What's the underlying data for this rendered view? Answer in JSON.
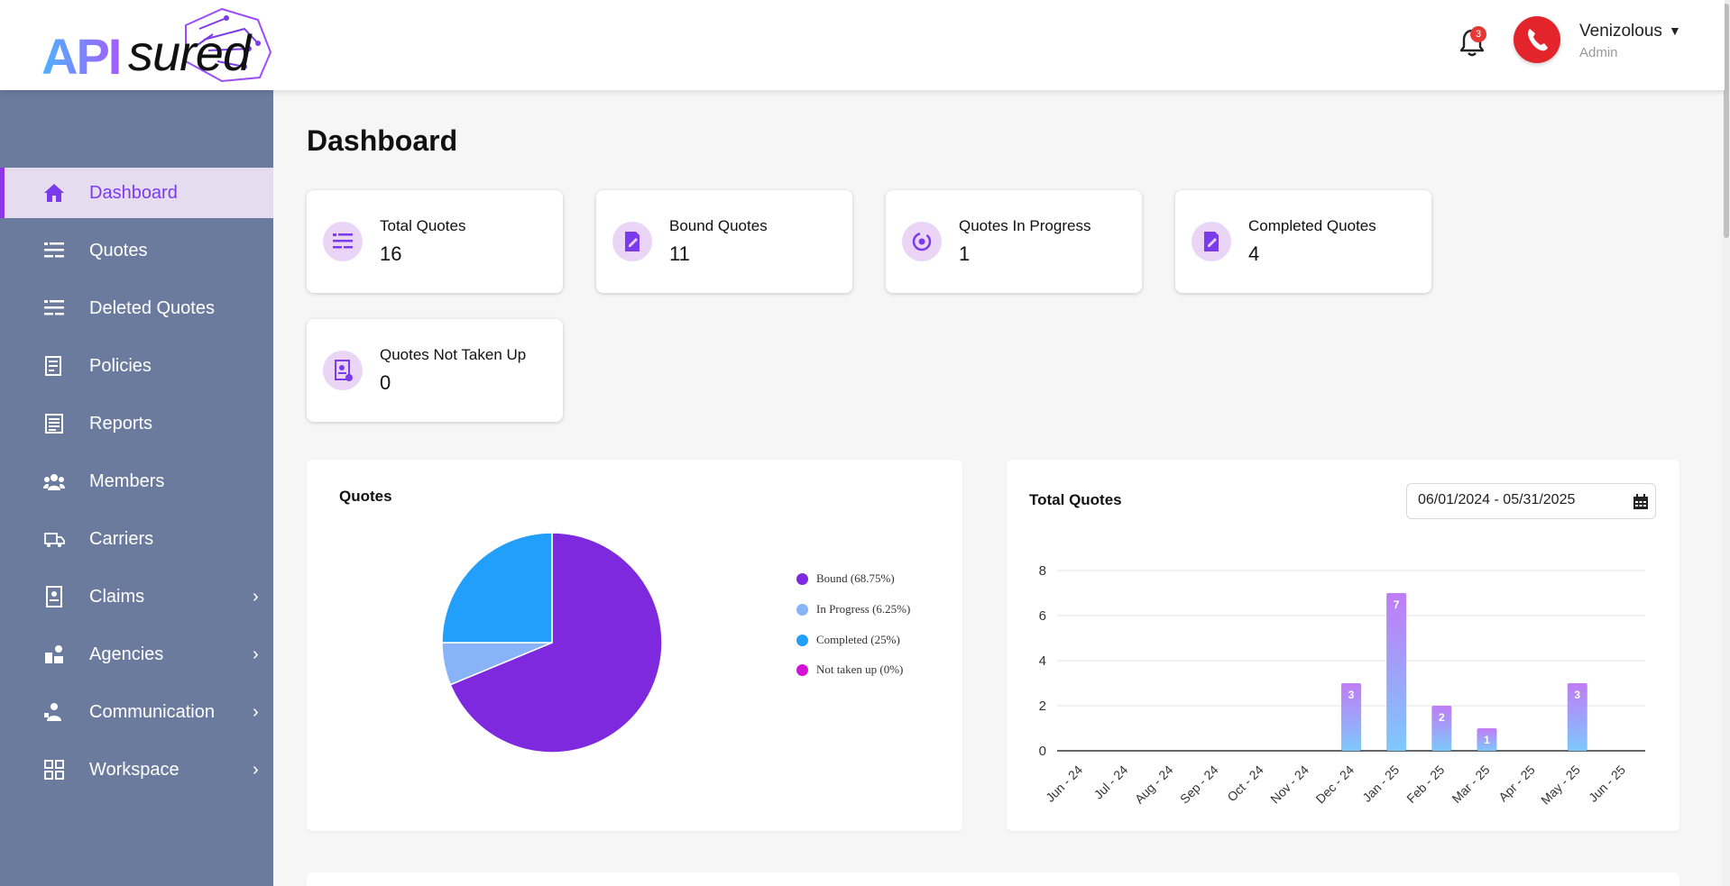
{
  "header": {
    "logo_text_a": "API",
    "logo_text_b": "sured",
    "notification_count": "3",
    "user_name": "Venizolous",
    "user_role": "Admin"
  },
  "sidebar": {
    "items": [
      {
        "label": "Dashboard",
        "icon": "home-icon",
        "active": true
      },
      {
        "label": "Quotes",
        "icon": "quotes-list-icon"
      },
      {
        "label": "Deleted Quotes",
        "icon": "deleted-quotes-icon"
      },
      {
        "label": "Policies",
        "icon": "policies-icon"
      },
      {
        "label": "Reports",
        "icon": "reports-icon"
      },
      {
        "label": "Members",
        "icon": "members-icon"
      },
      {
        "label": "Carriers",
        "icon": "carriers-icon"
      },
      {
        "label": "Claims",
        "icon": "claims-icon",
        "expandable": true
      },
      {
        "label": "Agencies",
        "icon": "agencies-icon",
        "expandable": true
      },
      {
        "label": "Communication",
        "icon": "communication-icon",
        "expandable": true
      },
      {
        "label": "Workspace",
        "icon": "workspace-icon",
        "expandable": true
      }
    ]
  },
  "main": {
    "title": "Dashboard",
    "cards": [
      {
        "title": "Total Quotes",
        "value": "16",
        "icon": "list-icon"
      },
      {
        "title": "Bound Quotes",
        "value": "11",
        "icon": "edit-document-icon"
      },
      {
        "title": "Quotes In Progress",
        "value": "1",
        "icon": "progress-cycle-icon"
      },
      {
        "title": "Completed Quotes",
        "value": "4",
        "icon": "completed-document-icon"
      },
      {
        "title": "Quotes Not Taken Up",
        "value": "0",
        "icon": "rejected-document-icon"
      }
    ]
  },
  "colors": {
    "accent": "#7c3aed",
    "sidebar": "#6b7b9e",
    "bound": "#7e29de",
    "in_progress": "#88b3f7",
    "completed": "#219ffb",
    "not_taken_up": "#d411d9"
  },
  "date_range": "06/01/2024 - 05/31/2025",
  "chart_data": [
    {
      "type": "pie",
      "title": "Quotes",
      "slices": [
        {
          "label": "Bound (68.75%)",
          "value": 68.75,
          "color": "#7e29de"
        },
        {
          "label": "In Progress (6.25%)",
          "value": 6.25,
          "color": "#88b3f7"
        },
        {
          "label": "Completed (25%)",
          "value": 25,
          "color": "#219ffb"
        },
        {
          "label": "Not taken up (0%)",
          "value": 0,
          "color": "#d411d9"
        }
      ],
      "legend": "right"
    },
    {
      "type": "bar",
      "title": "Total Quotes",
      "categories": [
        "Jun - 24",
        "Jul - 24",
        "Aug - 24",
        "Sep - 24",
        "Oct - 24",
        "Nov - 24",
        "Dec - 24",
        "Jan - 25",
        "Feb - 25",
        "Mar - 25",
        "Apr - 25",
        "May - 25",
        "Jun - 25"
      ],
      "values": [
        0,
        0,
        0,
        0,
        0,
        0,
        3,
        7,
        2,
        1,
        0,
        3,
        0
      ],
      "yticks": [
        "0",
        "2",
        "4",
        "6",
        "8"
      ],
      "ylim": [
        0,
        8
      ],
      "grid": true
    }
  ]
}
